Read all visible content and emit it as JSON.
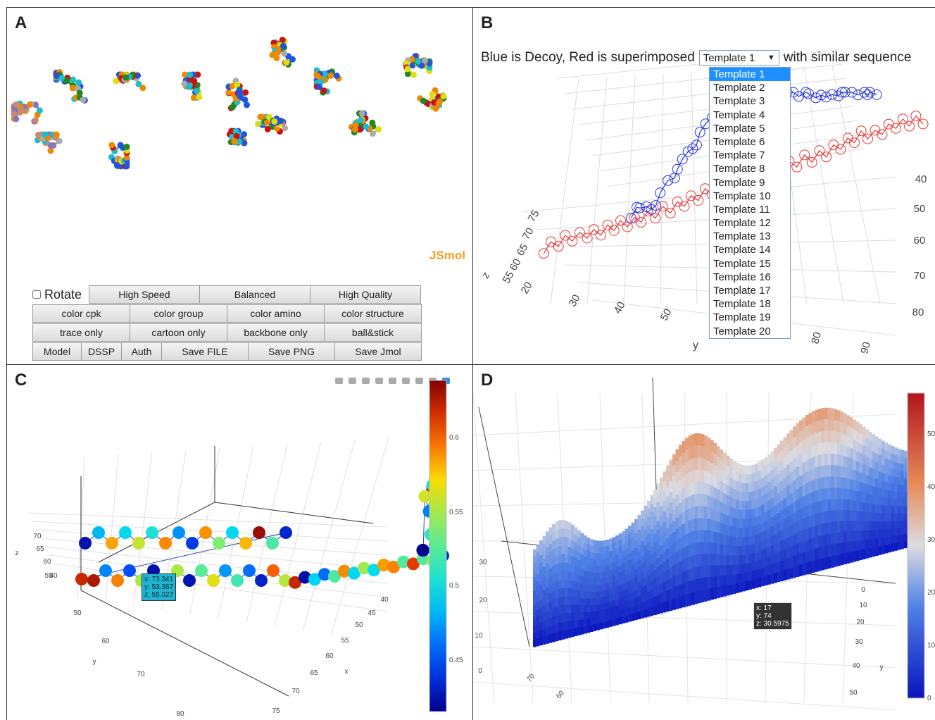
{
  "panelA": {
    "label": "A",
    "logo": "JSmol",
    "rotate_label": "Rotate",
    "row1": [
      "High Speed",
      "Balanced",
      "High Quality"
    ],
    "row2": [
      "color cpk",
      "color group",
      "color amino",
      "color structure"
    ],
    "row3": [
      "trace only",
      "cartoon only",
      "backbone only",
      "ball&stick"
    ],
    "row4": [
      "Model",
      "DSSP",
      "Auth",
      "Save FILE",
      "Save PNG",
      "Save Jmol"
    ]
  },
  "panelB": {
    "label": "B",
    "caption_pre": "Blue is Decoy, Red is superimposed",
    "caption_post": "with similar sequence",
    "selected": "Template 1",
    "options": [
      "Template 1",
      "Template 2",
      "Template 3",
      "Template 4",
      "Template 5",
      "Template 6",
      "Template 7",
      "Template 8",
      "Template 9",
      "Template 10",
      "Template 11",
      "Template 12",
      "Template 13",
      "Template 14",
      "Template 15",
      "Template 16",
      "Template 17",
      "Template 18",
      "Template 19",
      "Template 20"
    ],
    "z_axis": {
      "title": "z",
      "ticks": [
        "55",
        "60",
        "65",
        "70",
        "75"
      ]
    },
    "y_axis": {
      "title": "y",
      "ticks": [
        "20",
        "30",
        "40",
        "50"
      ]
    },
    "x_axis": {
      "ticks": [
        "40",
        "50",
        "60",
        "70",
        "80"
      ]
    },
    "y_axis_right": {
      "ticks": [
        "80",
        "90"
      ]
    },
    "colors": {
      "decoy": "#2233dd",
      "template": "#ee3333"
    }
  },
  "panelC": {
    "label": "C",
    "tooltip": [
      "x: 73.341",
      "y: 53.367",
      "z: 55.027"
    ],
    "z_axis": {
      "title": "z",
      "ticks": [
        "55",
        "60",
        "65",
        "70"
      ]
    },
    "z_tick_extra": "40",
    "y_axis": {
      "title": "y",
      "ticks": [
        "50",
        "60",
        "70",
        "80"
      ]
    },
    "x_axis": {
      "title": "x",
      "ticks": [
        "40",
        "45",
        "50",
        "55",
        "60",
        "65",
        "70",
        "75"
      ]
    },
    "colorbar_ticks": [
      "0.6",
      "0.55",
      "0.5",
      "0.45"
    ],
    "colorscale": "jet"
  },
  "panelD": {
    "label": "D",
    "tooltip": [
      "x: 17",
      "y: 74",
      "z: 30.5975"
    ],
    "z_axis": {
      "ticks": [
        "0",
        "10",
        "20",
        "30"
      ]
    },
    "x_axis": {
      "ticks": [
        "70",
        "60"
      ]
    },
    "y_axis": {
      "title": "y",
      "ticks": [
        "0",
        "10",
        "20",
        "30",
        "40",
        "50"
      ]
    },
    "colorbar_ticks": [
      "50",
      "40",
      "30",
      "20",
      "10",
      "0"
    ],
    "colorscale": "rdbu"
  }
}
